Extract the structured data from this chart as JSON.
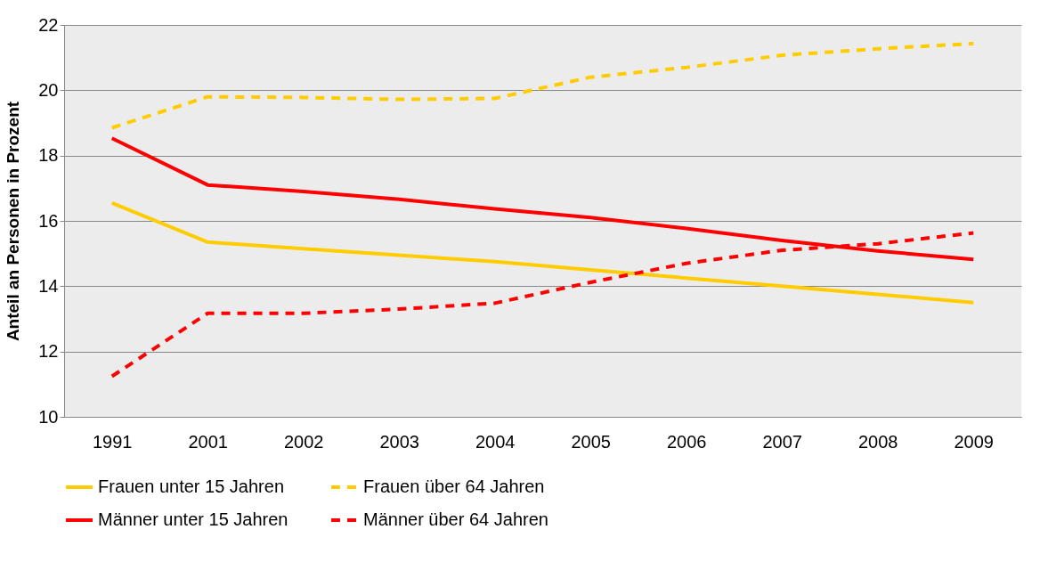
{
  "chart_data": {
    "type": "line",
    "ylabel": "Anteil an Personen in Prozent",
    "categories": [
      "1991",
      "2001",
      "2002",
      "2003",
      "2004",
      "2005",
      "2006",
      "2007",
      "2008",
      "2009"
    ],
    "series": [
      {
        "name": "Frauen unter 15 Jahren",
        "color": "#ffcc00",
        "line_style": "solid",
        "values": [
          16.55,
          15.35,
          15.15,
          14.95,
          14.75,
          14.5,
          14.25,
          14.0,
          13.75,
          13.5
        ]
      },
      {
        "name": "Frauen über 64 Jahren",
        "color": "#ffcc00",
        "line_style": "dashed",
        "values": [
          18.85,
          19.8,
          19.78,
          19.72,
          19.75,
          20.4,
          20.7,
          21.07,
          21.27,
          21.43
        ]
      },
      {
        "name": "Männer unter 15 Jahren",
        "color": "#ff0000",
        "line_style": "solid",
        "values": [
          18.53,
          17.1,
          16.9,
          16.66,
          16.37,
          16.1,
          15.77,
          15.4,
          15.08,
          14.82
        ]
      },
      {
        "name": "Männer über 64 Jahren",
        "color": "#ff0000",
        "line_style": "dashed",
        "values": [
          11.24,
          13.17,
          13.17,
          13.3,
          13.48,
          14.12,
          14.7,
          15.1,
          15.3,
          15.63
        ]
      }
    ],
    "ylim": [
      10,
      22
    ],
    "yticks": [
      10,
      12,
      14,
      16,
      18,
      20,
      22
    ],
    "grid": "y",
    "legend": "bottom",
    "marker": "none"
  }
}
